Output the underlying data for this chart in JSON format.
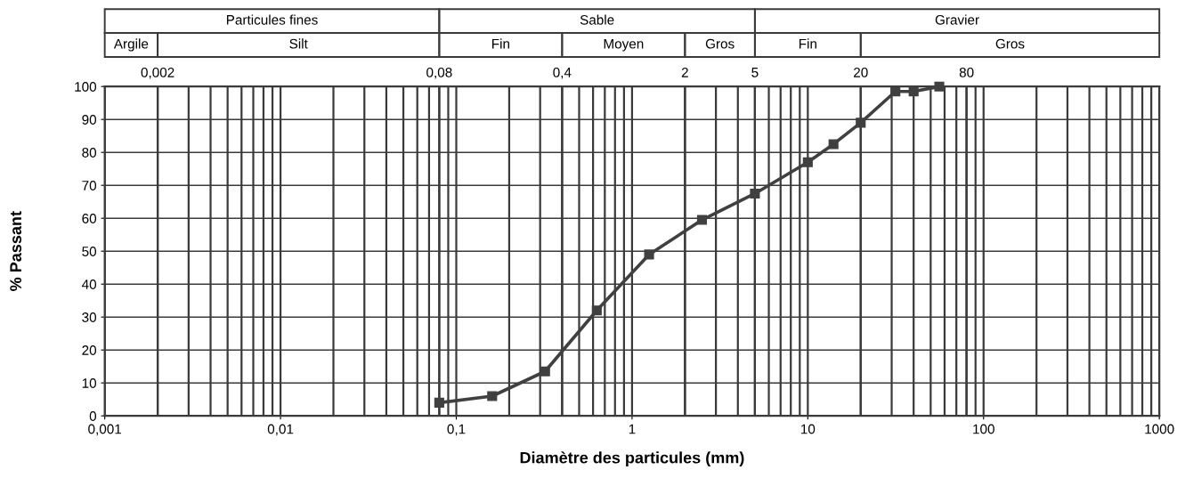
{
  "chart_data": {
    "type": "line",
    "xlabel": "Diamètre des particules (mm)",
    "ylabel": "% Passant",
    "x": [
      0.08,
      0.16,
      0.32,
      0.63,
      1.25,
      2.5,
      5,
      10,
      14,
      20,
      31.5,
      40,
      56
    ],
    "series": [
      {
        "color": "#404040",
        "values": [
          4,
          6,
          13.5,
          32,
          49,
          59.5,
          67.5,
          77,
          82.5,
          89,
          98.5,
          98.5,
          100
        ]
      }
    ],
    "log": "x",
    "marker": "square",
    "line_style": "solid",
    "grid": true,
    "legend": false,
    "xlim": [
      0.001,
      1000
    ],
    "xticks": [
      {
        "value": 0.001,
        "label": "0,001"
      },
      {
        "value": 0.01,
        "label": "0,01"
      },
      {
        "value": 0.1,
        "label": "0,1"
      },
      1,
      10,
      100,
      1000
    ],
    "ylim": [
      0,
      100
    ],
    "yticks": [
      0,
      10,
      20,
      30,
      40,
      50,
      60,
      70,
      80,
      90,
      100
    ],
    "ref_lines": [
      {
        "axis": "x",
        "value": 0.002,
        "label": "0,002"
      },
      {
        "axis": "x",
        "value": 0.08,
        "label": "0,08"
      },
      {
        "axis": "x",
        "value": 0.4,
        "label": "0,4"
      },
      {
        "axis": "x",
        "value": 2,
        "label": "2"
      },
      {
        "axis": "x",
        "value": 5,
        "label": "5"
      },
      {
        "axis": "x",
        "value": 20,
        "label": "20"
      },
      {
        "axis": "x",
        "value": 80,
        "label": "80"
      }
    ],
    "annotations": [
      "Particules fines",
      "Sable",
      "Gravier",
      "Argile",
      "Silt",
      "Fin",
      "Moyen",
      "Gros",
      "Fin",
      "Gros"
    ]
  }
}
